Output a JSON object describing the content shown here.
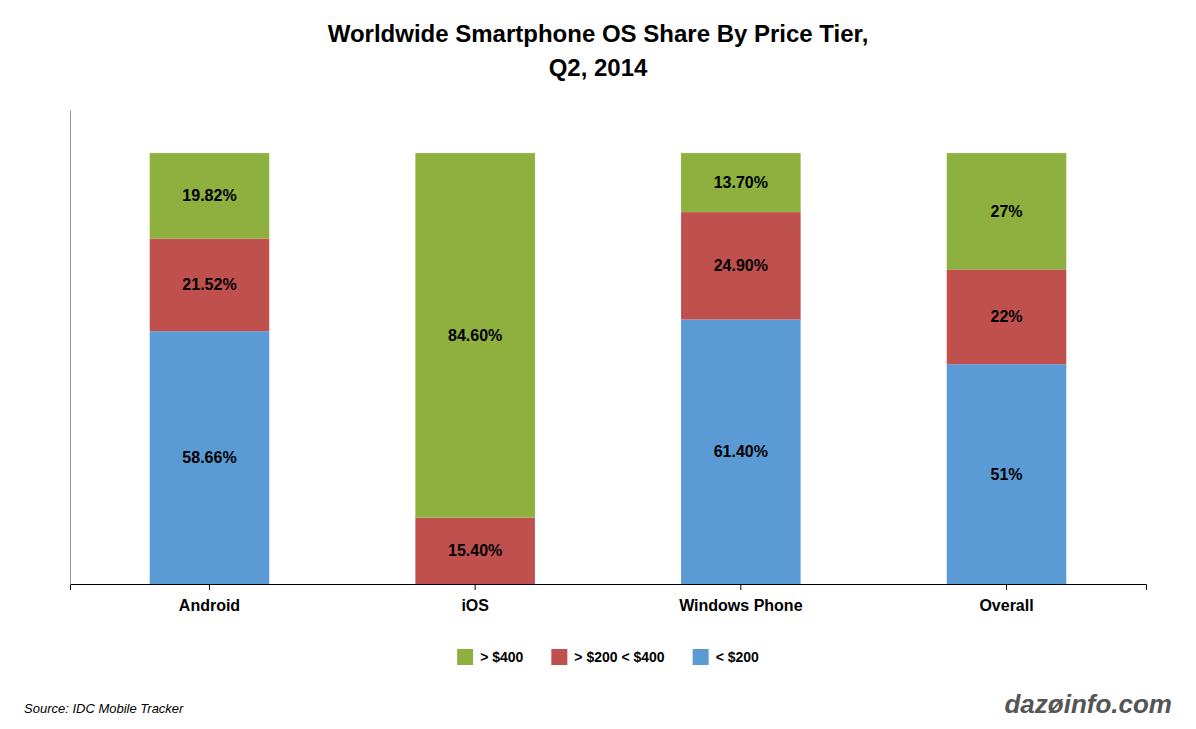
{
  "chart_data": {
    "type": "bar",
    "stacked": true,
    "title": "Worldwide Smartphone OS Share By Price Tier,",
    "subtitle": "Q2, 2014",
    "categories": [
      "Android",
      "iOS",
      "Windows Phone",
      "Overall"
    ],
    "series": [
      {
        "name": "< $200",
        "color": "#5b9bd5",
        "values": [
          58.66,
          0.0,
          61.4,
          51.0
        ],
        "value_labels": [
          "58.66%",
          null,
          "61.40%",
          "51%"
        ]
      },
      {
        "name": "> $200 < $400",
        "color": "#c0504d",
        "values": [
          21.52,
          15.4,
          24.9,
          22.0
        ],
        "value_labels": [
          "21.52%",
          "15.40%",
          "24.90%",
          "22%"
        ]
      },
      {
        "name": "> $400",
        "color": "#8db03f",
        "values": [
          19.82,
          84.6,
          13.7,
          27.0
        ],
        "value_labels": [
          "19.82%",
          "84.60%",
          "13.70%",
          "27%"
        ]
      }
    ],
    "ylim": [
      0,
      110
    ],
    "tick_labels": "x",
    "grid": false,
    "legend": "bottom",
    "data_labels": true,
    "annotations": [
      "Source: IDC Mobile Tracker",
      "dazøinfo.com"
    ]
  }
}
